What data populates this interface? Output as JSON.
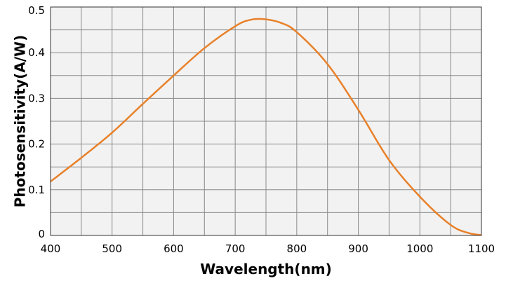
{
  "chart_data": {
    "type": "line",
    "xlabel": "Wavelength(nm)",
    "ylabel": "Photosensitivity(A/W)",
    "xlim": [
      400,
      1100
    ],
    "ylim": [
      0,
      0.5
    ],
    "x_ticks": [
      400,
      500,
      600,
      700,
      800,
      900,
      1000,
      1100
    ],
    "y_ticks": [
      0,
      0.1,
      0.2,
      0.3,
      0.4,
      0.5
    ],
    "y_tick_labels": [
      "0",
      "0.1",
      "0.2",
      "0.3",
      "0.4",
      "0.5"
    ],
    "grid": true,
    "colors": {
      "line": "#e8812a",
      "plot_bg": "#f2f2f2",
      "grid": "#8a8a8a"
    },
    "series": [
      {
        "x": [
          400,
          450,
          500,
          550,
          600,
          650,
          700,
          725,
          750,
          775,
          800,
          850,
          900,
          950,
          1000,
          1050,
          1080,
          1100
        ],
        "y": [
          0.118,
          0.17,
          0.225,
          0.288,
          0.35,
          0.41,
          0.458,
          0.472,
          0.473,
          0.465,
          0.445,
          0.375,
          0.275,
          0.165,
          0.085,
          0.023,
          0.005,
          0.001
        ]
      }
    ]
  }
}
